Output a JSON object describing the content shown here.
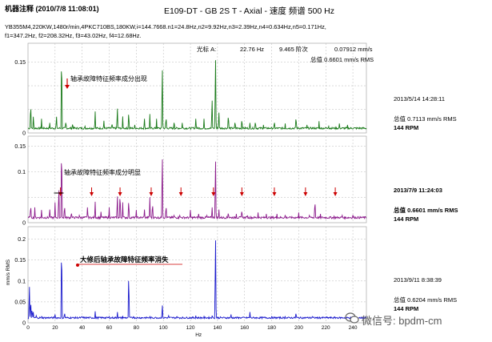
{
  "header": {
    "title": "E109-DT - GB 2S T - Axial - 速度 频谱 500 Hz",
    "annotation_label": "机器注释",
    "annotation_date": "(2010/7/8 11:08:01)",
    "meta_line1": "YB355M4,220KW,1480r/min,4PKC710BS,180KW,i=144.7668.n1=24.8Hz,n2=9.92Hz,n3=2.39Hz,n4=0.634Hz,n5=0.171Hz,",
    "meta_line2": "f1=347.2Hz, f2=208.32Hz, f3=43.02Hz, f4=12.68Hz."
  },
  "cursor": {
    "label": "光标 A:",
    "freq": "22.76 Hz",
    "order": "9.465 阶次",
    "amp": "0.07912 mm/s",
    "total": "总值  0.6601 mm/s RMS"
  },
  "chart_data": {
    "type": "line",
    "x_label": "Hz",
    "y_label": "mm/s RMS",
    "xlim": [
      0,
      250
    ],
    "x_ticks": [
      0,
      20,
      40,
      60,
      80,
      100,
      120,
      140,
      160,
      180,
      200,
      220,
      240
    ],
    "x_tick_labels": [
      "0",
      "20",
      "40",
      "60",
      "80",
      "100",
      "120",
      "140",
      "160",
      "180",
      "200",
      "220",
      "240"
    ],
    "series": [
      {
        "color": "#1a7a1a",
        "ylim": [
          0,
          0.19
        ],
        "y_ticks": [
          0,
          0.05,
          0.1,
          0.15
        ],
        "y_tick_labels": [
          "0",
          "",
          "",
          "0.15"
        ],
        "date": "2013/5/14 14:28:11",
        "total": "总值  0.7113 mm/s RMS",
        "rpm": "144 RPM",
        "note": "轴承故障特征频率成分出现",
        "bold_labels": false,
        "baseline": 0.008,
        "noise": 0.004,
        "peaks": [
          [
            2,
            0.07
          ],
          [
            4,
            0.04
          ],
          [
            10,
            0.03
          ],
          [
            16,
            0.025
          ],
          [
            21,
            0.04
          ],
          [
            24.8,
            0.19
          ],
          [
            28,
            0.03
          ],
          [
            33,
            0.025
          ],
          [
            42,
            0.02
          ],
          [
            49.6,
            0.05
          ],
          [
            56,
            0.03
          ],
          [
            62,
            0.025
          ],
          [
            66,
            0.06
          ],
          [
            70,
            0.035
          ],
          [
            74.4,
            0.05
          ],
          [
            79,
            0.02
          ],
          [
            86,
            0.035
          ],
          [
            90,
            0.04
          ],
          [
            95,
            0.03
          ],
          [
            99.2,
            0.16
          ],
          [
            102,
            0.04
          ],
          [
            108,
            0.03
          ],
          [
            114,
            0.025
          ],
          [
            124,
            0.035
          ],
          [
            130,
            0.03
          ],
          [
            136,
            0.08
          ],
          [
            138.5,
            0.18
          ],
          [
            141,
            0.05
          ],
          [
            148,
            0.045
          ],
          [
            153,
            0.03
          ],
          [
            158,
            0.035
          ],
          [
            164,
            0.025
          ],
          [
            168,
            0.03
          ],
          [
            174,
            0.02
          ],
          [
            182,
            0.03
          ],
          [
            190,
            0.02
          ],
          [
            198,
            0.04
          ],
          [
            206,
            0.02
          ],
          [
            215,
            0.025
          ],
          [
            222,
            0.02
          ],
          [
            230,
            0.02
          ],
          [
            236,
            0.02
          ]
        ]
      },
      {
        "color": "#8b1a8b",
        "ylim": [
          0,
          0.17
        ],
        "y_ticks": [
          0,
          0.05,
          0.1,
          0.15
        ],
        "y_tick_labels": [
          "0",
          "",
          "0.1",
          "0.15"
        ],
        "date": "2013/7/9 11:24:03",
        "total": "总值  0.6601 mm/s RMS",
        "rpm": "144 RPM",
        "note": "轴承故障特征频率成分明显",
        "bold_labels": true,
        "baseline": 0.008,
        "noise": 0.004,
        "peaks": [
          [
            2,
            0.04
          ],
          [
            5,
            0.03
          ],
          [
            10,
            0.025
          ],
          [
            16,
            0.03
          ],
          [
            20,
            0.04
          ],
          [
            22.76,
            0.079
          ],
          [
            24.8,
            0.17
          ],
          [
            27,
            0.04
          ],
          [
            32,
            0.025
          ],
          [
            38,
            0.02
          ],
          [
            44,
            0.035
          ],
          [
            49.6,
            0.045
          ],
          [
            54,
            0.025
          ],
          [
            60,
            0.03
          ],
          [
            66,
            0.06
          ],
          [
            68,
            0.065
          ],
          [
            70,
            0.04
          ],
          [
            74.4,
            0.05
          ],
          [
            80,
            0.025
          ],
          [
            86,
            0.03
          ],
          [
            90,
            0.05
          ],
          [
            92,
            0.045
          ],
          [
            99.2,
            0.15
          ],
          [
            102,
            0.04
          ],
          [
            108,
            0.02
          ],
          [
            112,
            0.02
          ],
          [
            120,
            0.025
          ],
          [
            126,
            0.02
          ],
          [
            132,
            0.02
          ],
          [
            136,
            0.035
          ],
          [
            138.5,
            0.14
          ],
          [
            141,
            0.03
          ],
          [
            148,
            0.025
          ],
          [
            154,
            0.02
          ],
          [
            158,
            0.03
          ],
          [
            162,
            0.02
          ],
          [
            170,
            0.02
          ],
          [
            176,
            0.02
          ],
          [
            184,
            0.02
          ],
          [
            190,
            0.015
          ],
          [
            200,
            0.02
          ],
          [
            208,
            0.02
          ],
          [
            212,
            0.05
          ],
          [
            216,
            0.02
          ],
          [
            226,
            0.015
          ],
          [
            232,
            0.02
          ],
          [
            240,
            0.015
          ]
        ],
        "arrows": [
          24,
          47,
          68,
          91,
          113,
          137,
          158,
          182,
          205,
          227
        ]
      },
      {
        "color": "#1a1acc",
        "ylim": [
          0,
          0.23
        ],
        "y_ticks": [
          0,
          0.05,
          0.1,
          0.15,
          0.2
        ],
        "y_tick_labels": [
          "0",
          "0.05",
          "0.1",
          "0.15",
          "0.2"
        ],
        "date": "2013/9/11 8:38:39",
        "total": "总值  0.6204 mm/s RMS",
        "rpm": "144 RPM",
        "note": "大修后轴承故障特征频率消失",
        "bold_labels": false,
        "baseline": 0.01,
        "noise": 0.004,
        "peaks": [
          [
            1,
            0.1
          ],
          [
            2,
            0.06
          ],
          [
            3,
            0.04
          ],
          [
            4,
            0.03
          ],
          [
            6,
            0.02
          ],
          [
            10,
            0.015
          ],
          [
            16,
            0.015
          ],
          [
            20,
            0.02
          ],
          [
            24.8,
            0.21
          ],
          [
            27,
            0.03
          ],
          [
            32,
            0.015
          ],
          [
            40,
            0.015
          ],
          [
            49.6,
            0.03
          ],
          [
            56,
            0.015
          ],
          [
            60,
            0.015
          ],
          [
            66,
            0.03
          ],
          [
            70,
            0.015
          ],
          [
            74.4,
            0.13
          ],
          [
            78,
            0.02
          ],
          [
            86,
            0.015
          ],
          [
            90,
            0.015
          ],
          [
            94,
            0.015
          ],
          [
            99.2,
            0.05
          ],
          [
            104,
            0.02
          ],
          [
            110,
            0.015
          ],
          [
            118,
            0.015
          ],
          [
            124,
            0.02
          ],
          [
            130,
            0.015
          ],
          [
            136,
            0.02
          ],
          [
            138.5,
            0.23
          ],
          [
            142,
            0.02
          ],
          [
            150,
            0.02
          ],
          [
            156,
            0.015
          ],
          [
            164,
            0.03
          ],
          [
            172,
            0.015
          ],
          [
            180,
            0.015
          ],
          [
            190,
            0.015
          ],
          [
            198,
            0.03
          ],
          [
            210,
            0.015
          ],
          [
            222,
            0.015
          ],
          [
            232,
            0.015
          ],
          [
            240,
            0.015
          ]
        ]
      }
    ]
  },
  "watermark": "微信号: bpdm-cm"
}
